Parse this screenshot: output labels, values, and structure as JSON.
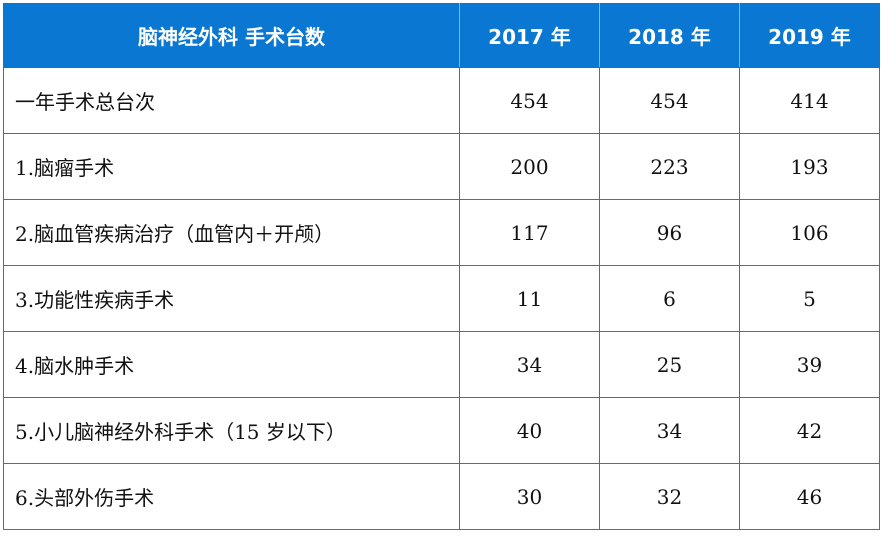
{
  "table": {
    "header": {
      "title": "脑神经外科  手术台数",
      "years": [
        "2017 年",
        "2018 年",
        "2019 年"
      ]
    },
    "rows": [
      {
        "label": "一年手术总台次",
        "values": [
          "454",
          "454",
          "414"
        ]
      },
      {
        "label": "1.脑瘤手术",
        "values": [
          "200",
          "223",
          "193"
        ]
      },
      {
        "label": "2.脑血管疾病治疗（血管内＋开颅）",
        "values": [
          "117",
          "96",
          "106"
        ]
      },
      {
        "label": "3.功能性疾病手术",
        "values": [
          "11",
          "6",
          "5"
        ]
      },
      {
        "label": "4.脑水肿手术",
        "values": [
          "34",
          "25",
          "39"
        ]
      },
      {
        "label": "5.小儿脑神经外科手术（15 岁以下）",
        "values": [
          "40",
          "34",
          "42"
        ]
      },
      {
        "label": "6.头部外伤手术",
        "values": [
          "30",
          "32",
          "46"
        ]
      }
    ]
  },
  "colors": {
    "header_background": "#0a78d2",
    "header_text": "#ffffff",
    "grid_line": "#2a78c0"
  }
}
